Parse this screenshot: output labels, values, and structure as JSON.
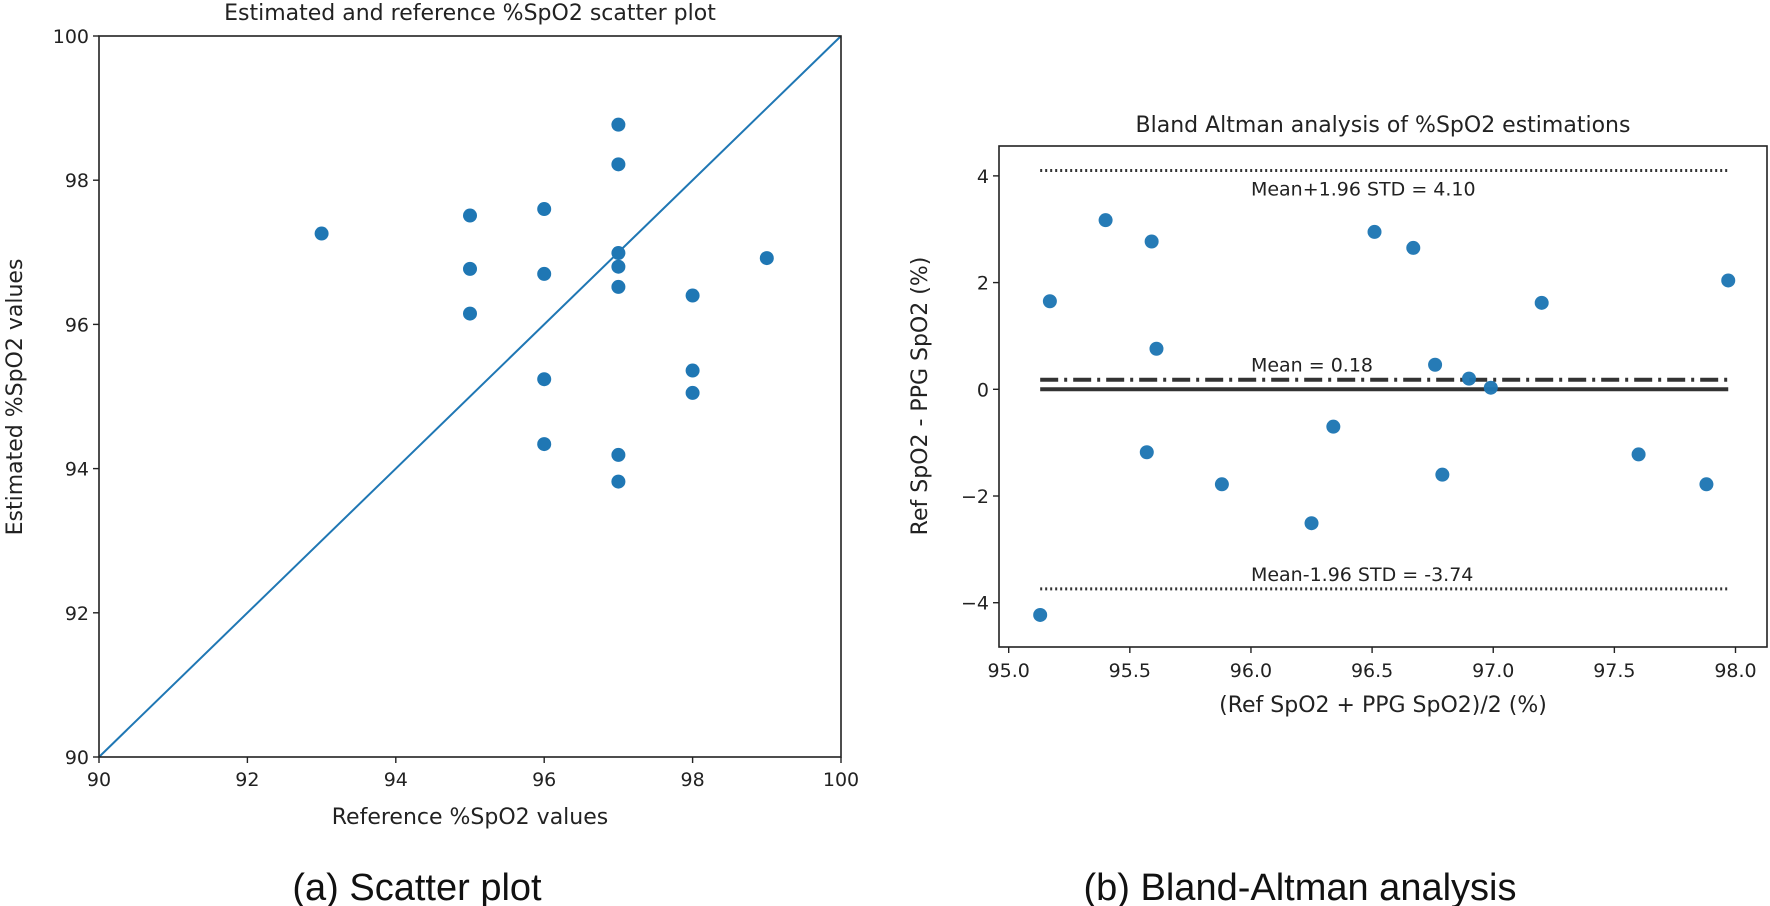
{
  "chart_data": [
    {
      "type": "scatter",
      "title": "Estimated and reference %SpO2 scatter plot",
      "xlabel": "Reference %SpO2 values",
      "ylabel": "Estimated %SpO2 values",
      "caption": "(a) Scatter plot",
      "xlim": [
        90,
        100
      ],
      "ylim": [
        90,
        100
      ],
      "xticks": [
        "90",
        "92",
        "94",
        "96",
        "98",
        "100"
      ],
      "yticks": [
        "90",
        "92",
        "94",
        "96",
        "98",
        "100"
      ],
      "grid": false,
      "colors": {
        "points": "#1f77b4",
        "identity_line": "#1f77b4"
      },
      "identity_line": {
        "x": [
          90,
          100
        ],
        "y": [
          90,
          100
        ]
      },
      "points": [
        [
          93,
          97.26
        ],
        [
          95,
          97.51
        ],
        [
          95,
          96.77
        ],
        [
          95,
          96.15
        ],
        [
          96,
          97.6
        ],
        [
          96,
          96.7
        ],
        [
          96,
          95.24
        ],
        [
          96,
          94.34
        ],
        [
          97,
          98.77
        ],
        [
          97,
          98.22
        ],
        [
          97,
          96.99
        ],
        [
          97,
          96.8
        ],
        [
          97,
          96.52
        ],
        [
          97,
          94.19
        ],
        [
          97,
          93.82
        ],
        [
          98,
          96.4
        ],
        [
          98,
          95.36
        ],
        [
          98,
          95.05
        ],
        [
          99,
          96.92
        ]
      ]
    },
    {
      "type": "scatter",
      "title": "Bland Altman analysis of %SpO2 estimations",
      "xlabel": "(Ref SpO2 + PPG SpO2)/2 (%)",
      "ylabel": "Ref SpO2 - PPG SpO2 (%)",
      "caption": "(b) Bland-Altman analysis",
      "xlim": [
        94.96,
        98.13
      ],
      "ylim": [
        -4.83,
        4.56
      ],
      "xticks": [
        "95.0",
        "95.5",
        "96.0",
        "96.5",
        "97.0",
        "97.5",
        "98.0"
      ],
      "yticks": [
        "−4",
        "−2",
        "0",
        "2",
        "4"
      ],
      "grid": false,
      "colors": {
        "points": "#1f77b4",
        "lines": "#333333"
      },
      "lines_x_range": [
        95.13,
        97.97
      ],
      "reference_lines": [
        {
          "name": "upper-limit",
          "y": 4.1,
          "style": "dotted",
          "label": "Mean+1.96 STD = 4.10"
        },
        {
          "name": "mean",
          "y": 0.18,
          "style": "dashdot",
          "label": "Mean = 0.18"
        },
        {
          "name": "zero",
          "y": 0,
          "style": "solid",
          "label": ""
        },
        {
          "name": "lower-limit",
          "y": -3.74,
          "style": "dotted",
          "label": "Mean-1.96 STD = -3.74"
        }
      ],
      "points": [
        [
          95.13,
          -4.23
        ],
        [
          95.17,
          1.65
        ],
        [
          95.4,
          3.17
        ],
        [
          95.59,
          2.77
        ],
        [
          95.61,
          0.76
        ],
        [
          95.57,
          -1.18
        ],
        [
          95.88,
          -1.78
        ],
        [
          96.25,
          -2.51
        ],
        [
          96.34,
          -0.7
        ],
        [
          96.51,
          2.95
        ],
        [
          96.67,
          2.65
        ],
        [
          96.76,
          0.46
        ],
        [
          96.79,
          -1.6
        ],
        [
          96.9,
          0.2
        ],
        [
          96.99,
          0.03
        ],
        [
          97.2,
          1.62
        ],
        [
          97.6,
          -1.22
        ],
        [
          97.88,
          -1.78
        ],
        [
          97.97,
          2.04
        ]
      ]
    }
  ]
}
